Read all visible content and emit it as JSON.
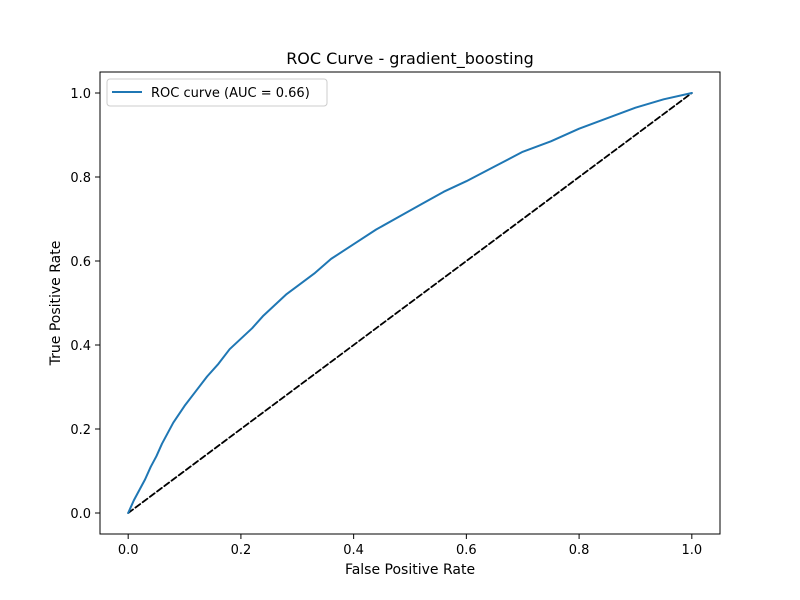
{
  "chart_data": {
    "type": "line",
    "title": "ROC Curve - gradient_boosting",
    "xlabel": "False Positive Rate",
    "ylabel": "True Positive Rate",
    "xlim": [
      -0.05,
      1.05
    ],
    "ylim": [
      -0.05,
      1.05
    ],
    "xticks": [
      "0.0",
      "0.2",
      "0.4",
      "0.6",
      "0.8",
      "1.0"
    ],
    "yticks": [
      "0.0",
      "0.2",
      "0.4",
      "0.6",
      "0.8",
      "1.0"
    ],
    "grid": false,
    "legend_position": "upper-left",
    "series": [
      {
        "name": "ROC curve (AUC = 0.66)",
        "color": "#1f77b4",
        "style": "solid",
        "x": [
          0.0,
          0.005,
          0.01,
          0.02,
          0.03,
          0.04,
          0.05,
          0.06,
          0.07,
          0.08,
          0.09,
          0.1,
          0.12,
          0.14,
          0.16,
          0.18,
          0.2,
          0.22,
          0.24,
          0.26,
          0.28,
          0.3,
          0.33,
          0.36,
          0.4,
          0.44,
          0.48,
          0.52,
          0.56,
          0.6,
          0.65,
          0.7,
          0.75,
          0.8,
          0.85,
          0.9,
          0.95,
          1.0
        ],
        "y": [
          0.0,
          0.015,
          0.03,
          0.055,
          0.08,
          0.11,
          0.135,
          0.165,
          0.19,
          0.215,
          0.235,
          0.255,
          0.29,
          0.325,
          0.355,
          0.39,
          0.415,
          0.44,
          0.47,
          0.495,
          0.52,
          0.54,
          0.57,
          0.605,
          0.64,
          0.675,
          0.705,
          0.735,
          0.765,
          0.79,
          0.825,
          0.86,
          0.885,
          0.915,
          0.94,
          0.965,
          0.985,
          1.0
        ]
      },
      {
        "name": "",
        "color": "#000000",
        "style": "dashed",
        "x": [
          0.0,
          1.0
        ],
        "y": [
          0.0,
          1.0
        ]
      }
    ]
  }
}
